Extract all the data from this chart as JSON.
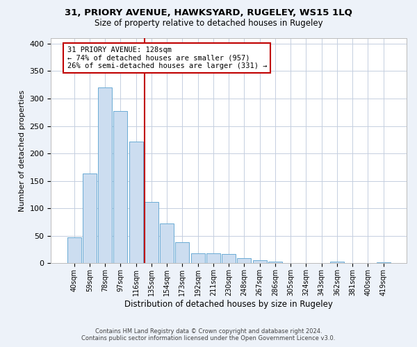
{
  "title": "31, PRIORY AVENUE, HAWKSYARD, RUGELEY, WS15 1LQ",
  "subtitle": "Size of property relative to detached houses in Rugeley",
  "xlabel": "Distribution of detached houses by size in Rugeley",
  "ylabel": "Number of detached properties",
  "footer_line1": "Contains HM Land Registry data © Crown copyright and database right 2024.",
  "footer_line2": "Contains public sector information licensed under the Open Government Licence v3.0.",
  "bar_labels": [
    "40sqm",
    "59sqm",
    "78sqm",
    "97sqm",
    "116sqm",
    "135sqm",
    "154sqm",
    "173sqm",
    "192sqm",
    "211sqm",
    "230sqm",
    "248sqm",
    "267sqm",
    "286sqm",
    "305sqm",
    "324sqm",
    "343sqm",
    "362sqm",
    "381sqm",
    "400sqm",
    "419sqm"
  ],
  "bar_values": [
    47,
    163,
    320,
    277,
    222,
    112,
    73,
    39,
    18,
    18,
    17,
    10,
    6,
    3,
    0,
    0,
    0,
    3,
    0,
    0,
    2
  ],
  "bar_color": "#ccddf0",
  "bar_edge_color": "#6aaad4",
  "annotation_line1": "31 PRIORY AVENUE: 128sqm",
  "annotation_line2": "← 74% of detached houses are smaller (957)",
  "annotation_line3": "26% of semi-detached houses are larger (331) →",
  "vline_x": 4.55,
  "vline_color": "#c00000",
  "ylim": [
    0,
    410
  ],
  "yticks": [
    0,
    50,
    100,
    150,
    200,
    250,
    300,
    350,
    400
  ],
  "bg_color": "#edf2f9",
  "plot_bg_color": "#ffffff",
  "grid_color": "#c5cfe0"
}
